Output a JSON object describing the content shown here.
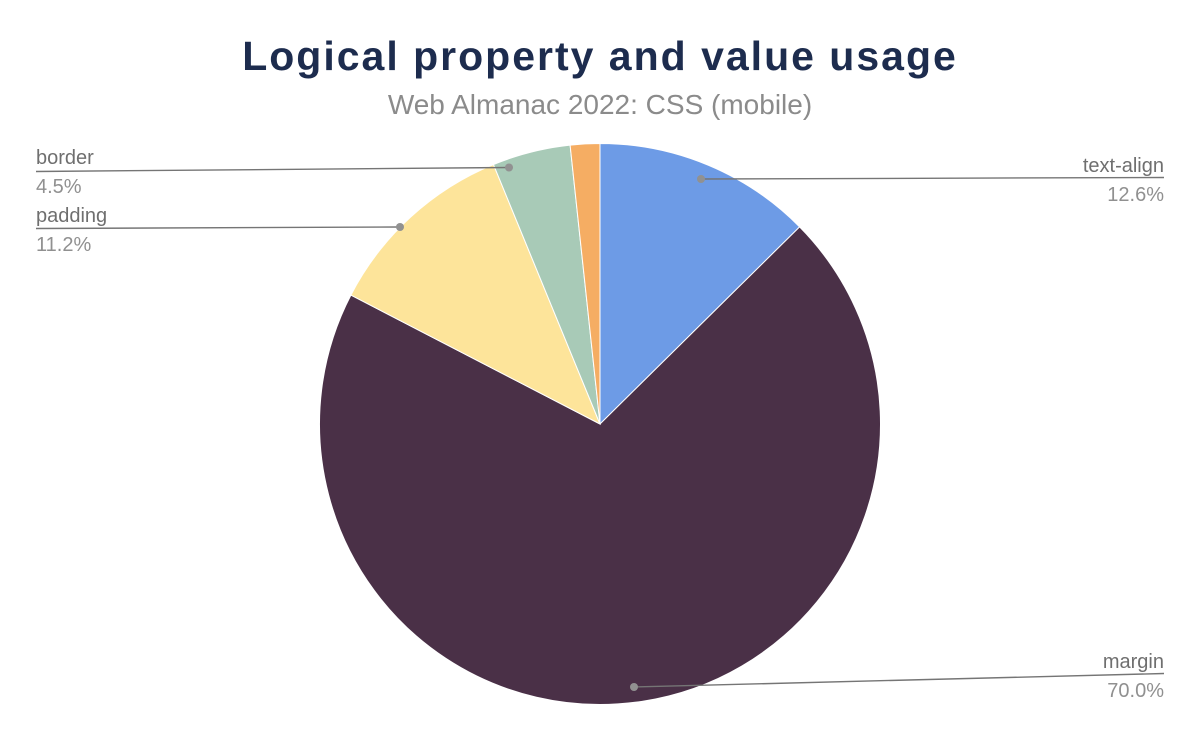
{
  "chart_data": {
    "type": "pie",
    "title": "Logical property and value usage",
    "subtitle": "Web Almanac 2022: CSS (mobile)",
    "legend_position": "none",
    "label_style": "callout-leader-lines",
    "direction": "clockwise",
    "start_angle_deg": 0,
    "slices": [
      {
        "label": "text-align",
        "value": 12.6,
        "color": "#6d9be6",
        "labeled": true
      },
      {
        "label": "margin",
        "value": 70.0,
        "color": "#4a3047",
        "labeled": true
      },
      {
        "label": "padding",
        "value": 11.2,
        "color": "#fde49a",
        "labeled": true
      },
      {
        "label": "border",
        "value": 4.5,
        "color": "#a8cab7",
        "labeled": true
      },
      {
        "label": "",
        "value": 1.7,
        "color": "#f5ad63",
        "labeled": false
      }
    ],
    "callouts": [
      {
        "name": "border",
        "pct": "4.5%"
      },
      {
        "name": "padding",
        "pct": "11.2%"
      },
      {
        "name": "text-align",
        "pct": "12.6%"
      },
      {
        "name": "margin",
        "pct": "70.0%"
      }
    ],
    "colors": {
      "title": "#1d2c4e",
      "subtitle": "#8b8b8b",
      "callout_name": "#6f6f6f",
      "callout_pct": "#909090",
      "connector": "#757575",
      "connector_dot": "#919191",
      "background": "#ffffff",
      "slice_border": "#ffffff"
    }
  }
}
